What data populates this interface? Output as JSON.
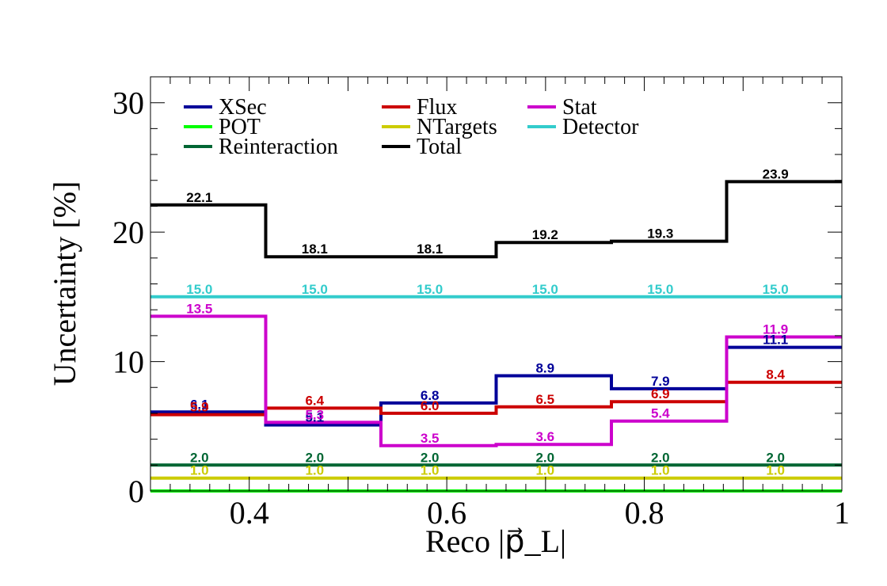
{
  "chart_data": {
    "type": "line",
    "step": true,
    "xlabel": "Reco |p⃗_L|",
    "ylabel": "Uncertainty [%]",
    "xlim": [
      0.3,
      1.0
    ],
    "ylim": [
      0,
      32
    ],
    "xticks": [
      {
        "value": 0.4,
        "label": "0.4"
      },
      {
        "value": 0.6,
        "label": "0.6"
      },
      {
        "value": 0.8,
        "label": "0.8"
      },
      {
        "value": 1.0,
        "label": "1"
      }
    ],
    "yticks": [
      {
        "value": 0,
        "label": "0"
      },
      {
        "value": 10,
        "label": "10"
      },
      {
        "value": 20,
        "label": "20"
      },
      {
        "value": 30,
        "label": "30"
      }
    ],
    "bin_edges": [
      0.3,
      0.4167,
      0.5333,
      0.65,
      0.7667,
      0.8833,
      1.0
    ],
    "grid": false,
    "legend_position": "top",
    "series": [
      {
        "name": "XSec",
        "color": "#000099",
        "values": [
          6.1,
          5.1,
          6.8,
          8.9,
          7.9,
          11.1
        ],
        "labels": [
          "6.1",
          "5.1",
          "6.8",
          "8.9",
          "7.9",
          "11.1"
        ]
      },
      {
        "name": "Flux",
        "color": "#cc0000",
        "values": [
          5.9,
          6.4,
          6.0,
          6.5,
          6.9,
          8.4
        ],
        "labels": [
          "5.9",
          "6.4",
          "6.0",
          "6.5",
          "6.9",
          "8.4"
        ]
      },
      {
        "name": "Stat",
        "color": "#cc00cc",
        "values": [
          13.5,
          5.3,
          3.5,
          3.6,
          5.4,
          11.9
        ],
        "labels": [
          "13.5",
          "5.3",
          "3.5",
          "3.6",
          "5.4",
          "11.9"
        ]
      },
      {
        "name": "POT",
        "color": "#00ff00",
        "values": [
          0,
          0,
          0,
          0,
          0,
          0
        ],
        "labels": []
      },
      {
        "name": "NTargets",
        "color": "#cccc00",
        "values": [
          1.0,
          1.0,
          1.0,
          1.0,
          1.0,
          1.0
        ],
        "labels": [
          "1.0",
          "1.0",
          "1.0",
          "1.0",
          "1.0",
          "1.0"
        ]
      },
      {
        "name": "Detector",
        "color": "#33cccc",
        "values": [
          15.0,
          15.0,
          15.0,
          15.0,
          15.0,
          15.0
        ],
        "labels": [
          "15.0",
          "15.0",
          "15.0",
          "15.0",
          "15.0",
          "15.0"
        ]
      },
      {
        "name": "Reinteraction",
        "color": "#006633",
        "values": [
          2.0,
          2.0,
          2.0,
          2.0,
          2.0,
          2.0
        ],
        "labels": [
          "2.0",
          "2.0",
          "2.0",
          "2.0",
          "2.0",
          "2.0"
        ]
      },
      {
        "name": "Total",
        "color": "#000000",
        "values": [
          22.1,
          18.1,
          18.1,
          19.2,
          19.3,
          23.9
        ],
        "labels": [
          "22.1",
          "18.1",
          "18.1",
          "19.2",
          "19.3",
          "23.9"
        ]
      }
    ]
  }
}
